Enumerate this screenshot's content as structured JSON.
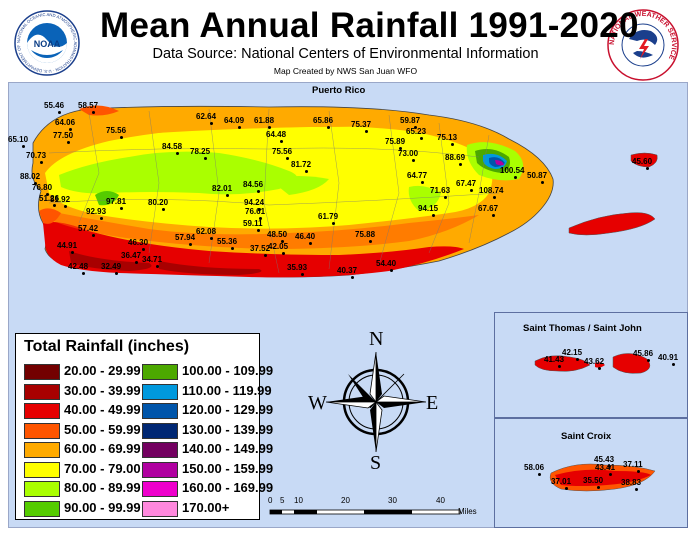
{
  "header": {
    "title": "Mean Annual Rainfall 1991-2020",
    "subtitle": "Data Source: National Centers of Environmental Information",
    "credit": "Map Created by NWS San Juan WFO",
    "noaa_logo_text": "NOAA",
    "noaa_logo_ring": "NATIONAL OCEANIC AND ATMOSPHERIC ADMINISTRATION · U.S. DEPARTMENT OF COMMERCE",
    "nws_logo_ring": "NATIONAL WEATHER SERVICE"
  },
  "regions": {
    "puerto_rico": "Puerto Rico",
    "st_thomas": "Saint Thomas / Saint John",
    "st_croix": "Saint Croix"
  },
  "legend": {
    "title": "Total Rainfall (inches)",
    "items": [
      {
        "label": "20.00 - 29.99",
        "color": "#730000"
      },
      {
        "label": "30.00 - 39.99",
        "color": "#a80000"
      },
      {
        "label": "40.00 - 49.99",
        "color": "#e60000"
      },
      {
        "label": "50.00 - 59.99",
        "color": "#ff5500"
      },
      {
        "label": "60.00 - 69.99",
        "color": "#ffaa00"
      },
      {
        "label": "70.00 - 79.00",
        "color": "#ffff00"
      },
      {
        "label": "80.00 - 89.99",
        "color": "#aaff00"
      },
      {
        "label": "90.00 - 99.99",
        "color": "#55cc00"
      },
      {
        "label": "100.00 - 109.99",
        "color": "#4ca800"
      },
      {
        "label": "110.00 - 119.99",
        "color": "#0099dd"
      },
      {
        "label": "120.00 - 129.99",
        "color": "#0055aa"
      },
      {
        "label": "130.00 - 139.99",
        "color": "#002773"
      },
      {
        "label": "140.00 - 149.99",
        "color": "#730060"
      },
      {
        "label": "150.00 - 159.99",
        "color": "#b000a0"
      },
      {
        "label": "160.00 - 169.99",
        "color": "#ee00cc"
      },
      {
        "label": "170.00+",
        "color": "#ff88dd"
      }
    ]
  },
  "compass": {
    "n": "N",
    "s": "S",
    "e": "E",
    "w": "W"
  },
  "scale": {
    "ticks": [
      "0",
      "5",
      "10",
      "20",
      "30",
      "40"
    ],
    "unit": "Miles"
  },
  "stations": {
    "puerto_rico": [
      "55.46",
      "58.57",
      "64.06",
      "65.10",
      "77.50",
      "75.56",
      "62.64",
      "64.09",
      "61.88",
      "65.86",
      "75.37",
      "59.87",
      "65.23",
      "64.48",
      "75.89",
      "75.13",
      "70.73",
      "84.58",
      "78.25",
      "75.56",
      "73.00",
      "88.69",
      "81.72",
      "88.02",
      "76.80",
      "81.92",
      "51.26",
      "97.81",
      "92.93",
      "80.20",
      "82.01",
      "84.56",
      "64.77",
      "67.47",
      "71.63",
      "100.54",
      "108.74",
      "50.87",
      "94.24",
      "76.61",
      "94.15",
      "67.67",
      "57.42",
      "57.94",
      "62.08",
      "59.11",
      "61.79",
      "46.30",
      "55.36",
      "48.50",
      "46.40",
      "75.88",
      "44.91",
      "36.47",
      "37.52",
      "42.05",
      "34.71",
      "42.48",
      "32.49",
      "35.93",
      "54.40",
      "40.37",
      "45.60"
    ],
    "st_thomas": [
      "42.15",
      "41.43",
      "43.62",
      "45.86",
      "40.91"
    ],
    "st_croix": [
      "45.43",
      "58.06",
      "43.41",
      "37.11",
      "37.01",
      "35.50",
      "38.83"
    ]
  }
}
